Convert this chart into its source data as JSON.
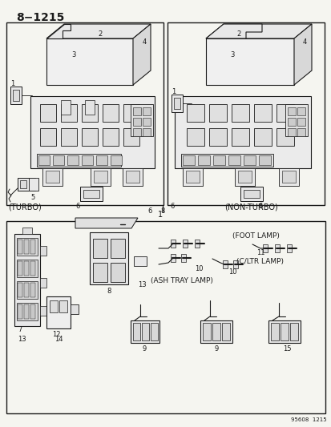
{
  "title": "8−1215",
  "bg": "#f5f5f0",
  "fg": "#1a1a1a",
  "fig_w": 4.14,
  "fig_h": 5.33,
  "dpi": 100,
  "footer": "95608  1215",
  "turbo_label": "(TURBO)",
  "non_turbo_label": "(NON-TURBO)",
  "foot_lamp": "(FOOT LAMP)",
  "cltr_lamp": "(C/LTR LAMP)",
  "ash_tray": "(ASH TRAY LAMP)"
}
